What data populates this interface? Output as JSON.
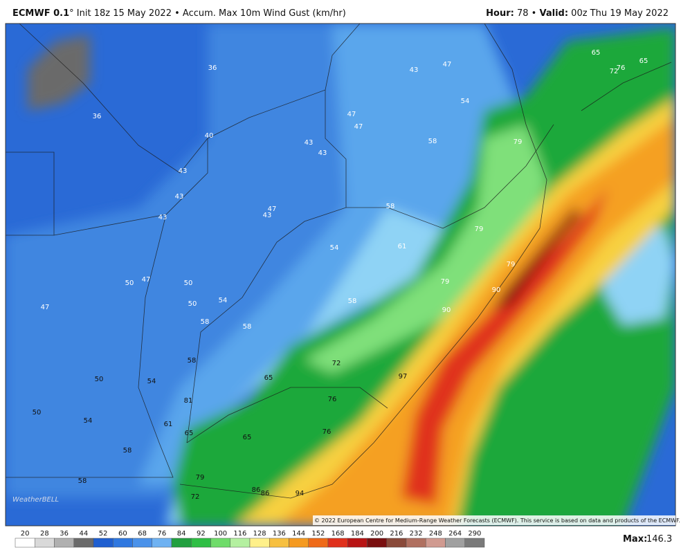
{
  "header": {
    "model": "ECMWF 0.1",
    "degree": "°",
    "init": "Init 18z 15 May 2022",
    "bullet": "•",
    "product": "Accum. Max 10m Wind Gust (km/hr)",
    "hour_label": "Hour:",
    "hour": "78",
    "valid_label": "Valid:",
    "valid": "00z Thu 19 May 2022"
  },
  "map": {
    "labels": [
      "36",
      "43",
      "47",
      "36",
      "54",
      "47",
      "47",
      "58",
      "40",
      "43",
      "43",
      "79",
      "43",
      "43",
      "58",
      "47",
      "43",
      "43",
      "79",
      "54",
      "61",
      "79",
      "50",
      "47",
      "50",
      "79",
      "90",
      "47",
      "50",
      "54",
      "58",
      "90",
      "58",
      "58",
      "72",
      "58",
      "97",
      "50",
      "54",
      "65",
      "76",
      "81",
      "50",
      "54",
      "61",
      "65",
      "76",
      "65",
      "58",
      "58",
      "79",
      "72",
      "86",
      "86",
      "94",
      "65",
      "72",
      "76",
      "65"
    ],
    "logo": "WeatherBELL",
    "copyright": "© 2022 European Centre for Medium-Range Weather Forecasts (ECMWF). This service is based on data and products of the ECMWF."
  },
  "colorbar": {
    "labels": [
      "20",
      "28",
      "36",
      "44",
      "52",
      "60",
      "68",
      "76",
      "84",
      "92",
      "100",
      "116",
      "128",
      "136",
      "144",
      "152",
      "168",
      "184",
      "200",
      "216",
      "232",
      "248",
      "264",
      "290"
    ]
  },
  "footer": {
    "max_label": "Max:",
    "max_value": "146.3"
  }
}
